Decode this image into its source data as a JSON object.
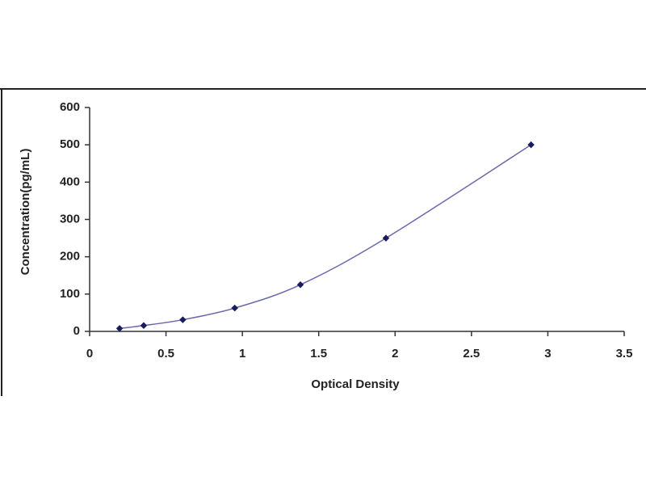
{
  "chart_data": {
    "type": "scatter",
    "xlabel": "Optical Density",
    "ylabel": "Concentration(pg/mL)",
    "series": [
      {
        "color": "#1a1a5e",
        "line_color": "#6a6aa8",
        "x": [
          0.196,
          0.354,
          0.61,
          0.95,
          1.38,
          1.94,
          2.89
        ],
        "values": [
          7.81,
          15.63,
          31.25,
          62.5,
          125,
          250,
          500
        ]
      }
    ],
    "xlim": [
      0,
      3.5
    ],
    "xticks": [
      0,
      0.5,
      1,
      1.5,
      2,
      2.5,
      3,
      3.5
    ],
    "ylim": [
      0,
      600
    ],
    "yticks": [
      0,
      100,
      200,
      300,
      400,
      500,
      600
    ],
    "grid": false
  }
}
